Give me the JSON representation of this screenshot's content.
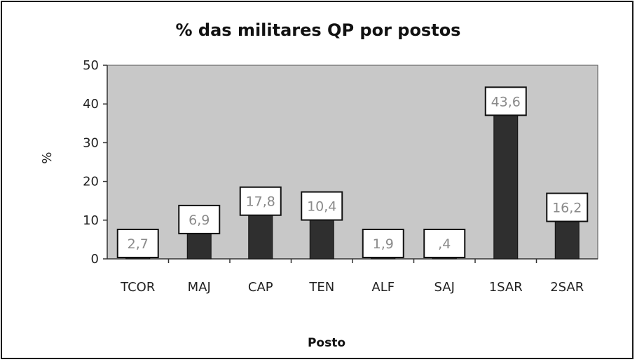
{
  "chart_data": {
    "type": "bar",
    "title": "% das militares QP por postos",
    "ylabel": "%",
    "xlabel": "Posto",
    "categories": [
      "TCOR",
      "MAJ",
      "CAP",
      "TEN",
      "ALF",
      "SAJ",
      "1SAR",
      "2SAR"
    ],
    "values": [
      2.7,
      6.9,
      17.8,
      10.4,
      1.9,
      0.4,
      43.6,
      16.2
    ],
    "data_labels": [
      "2,7",
      "6,9",
      "17,8",
      "10,4",
      "1,9",
      ",4",
      "43,6",
      "16,2"
    ],
    "yticks": [
      "0",
      "10",
      "20",
      "30",
      "40",
      "50"
    ],
    "ylim": [
      0,
      50
    ],
    "grid": false,
    "legend": "none",
    "colors": {
      "plot_background": "#c8c8c8",
      "bar": "#2f2f2f",
      "label_box": "#ffffff",
      "label_text": "#8a8a8a"
    }
  }
}
